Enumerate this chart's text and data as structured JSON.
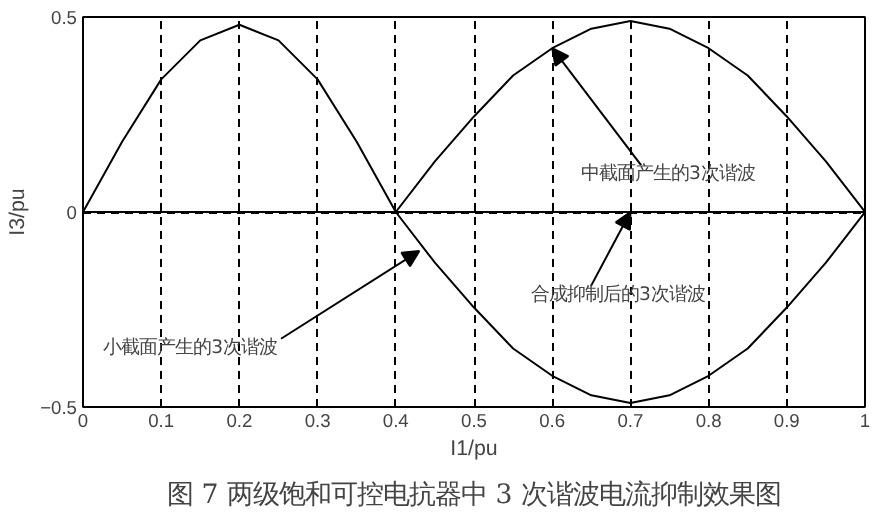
{
  "chart_data": {
    "type": "line",
    "title": "图 7 两级饱和可控电抗器中 3 次谐波电流抑制效果图",
    "xlabel": "I1/pu",
    "ylabel": "I3/pu",
    "xlim": [
      0,
      1
    ],
    "ylim": [
      -0.5,
      0.5
    ],
    "xticks": [
      0,
      0.1,
      0.2,
      0.3,
      0.4,
      0.5,
      0.6,
      0.7,
      0.8,
      0.9,
      1
    ],
    "yticks": [
      -0.5,
      0,
      0.5
    ],
    "grid": true,
    "line_style": "solid",
    "marker": "none",
    "series": [
      {
        "color": "#000000",
        "x": [
          0,
          0.05,
          0.1,
          0.15,
          0.2,
          0.25,
          0.3,
          0.35,
          0.4,
          0.45,
          0.5,
          0.55,
          0.6,
          0.65,
          0.7,
          0.75,
          0.8,
          0.85,
          0.9,
          0.95,
          1
        ],
        "values": [
          0,
          0.18,
          0.34,
          0.44,
          0.48,
          0.44,
          0.34,
          0.18,
          0,
          0.13,
          0.245,
          0.35,
          0.42,
          0.47,
          0.49,
          0.47,
          0.42,
          0.35,
          0.245,
          0.13,
          0
        ]
      },
      {
        "color": "#000000",
        "x": [
          0.4,
          0.45,
          0.5,
          0.55,
          0.6,
          0.65,
          0.7,
          0.75,
          0.8,
          0.85,
          0.9,
          0.95,
          1
        ],
        "values": [
          0,
          -0.13,
          -0.245,
          -0.35,
          -0.42,
          -0.47,
          -0.49,
          -0.47,
          -0.42,
          -0.35,
          -0.245,
          -0.13,
          0
        ]
      },
      {
        "color": "#000000",
        "x": [
          0,
          1
        ],
        "values": [
          0,
          0
        ]
      }
    ],
    "annotations": [
      {
        "text": "中截面产生的3次谐波",
        "x": 0.6,
        "y": 0.42
      },
      {
        "text": "小截面产生的3次谐波",
        "x": 0.43,
        "y": -0.1
      },
      {
        "text": "合成抑制后的3次谐波",
        "x": 0.7,
        "y": 0.0
      }
    ]
  }
}
